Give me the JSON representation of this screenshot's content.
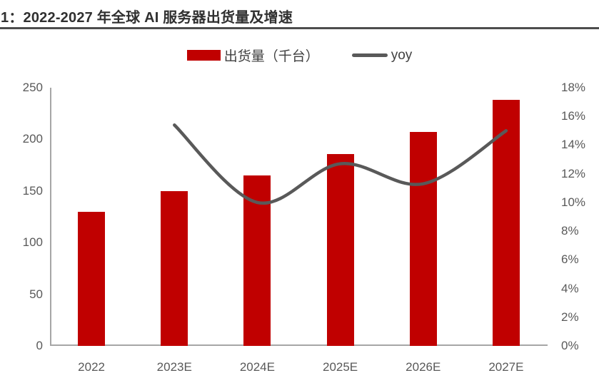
{
  "figure": {
    "title": "1：2022-2027 年全球 AI 服务器出货量及增速"
  },
  "legend": {
    "bars_label": "出货量（千台）",
    "line_label": "yoy"
  },
  "colors": {
    "bar": "#c00000",
    "line": "#595959",
    "axis_line": "#a6a6a6",
    "tick_text": "#595959",
    "title_text": "#303030",
    "title_rule": "#4d4d4d"
  },
  "chart_data": {
    "type": "bar",
    "subtype": "bar-line-combo",
    "categories": [
      "2022",
      "2023E",
      "2024E",
      "2025E",
      "2026E",
      "2027E"
    ],
    "series": [
      {
        "name": "出货量（千台）",
        "type": "bar",
        "axis": "left",
        "values": [
          130,
          150,
          165,
          186,
          207,
          238
        ]
      },
      {
        "name": "yoy",
        "type": "line",
        "axis": "right",
        "values": [
          null,
          15.4,
          10.0,
          12.7,
          11.3,
          15.0
        ]
      }
    ],
    "left_axis": {
      "min": 0,
      "max": 250,
      "step": 50,
      "ticks_top_to_bottom": [
        "250",
        "200",
        "150",
        "100",
        "50",
        "0"
      ]
    },
    "right_axis": {
      "min": 0,
      "max": 18,
      "step": 2,
      "unit": "%",
      "ticks_top_to_bottom": [
        "18%",
        "16%",
        "14%",
        "12%",
        "10%",
        "8%",
        "6%",
        "4%",
        "2%",
        "0%"
      ]
    },
    "grid": false,
    "legend_position": "top-center"
  }
}
